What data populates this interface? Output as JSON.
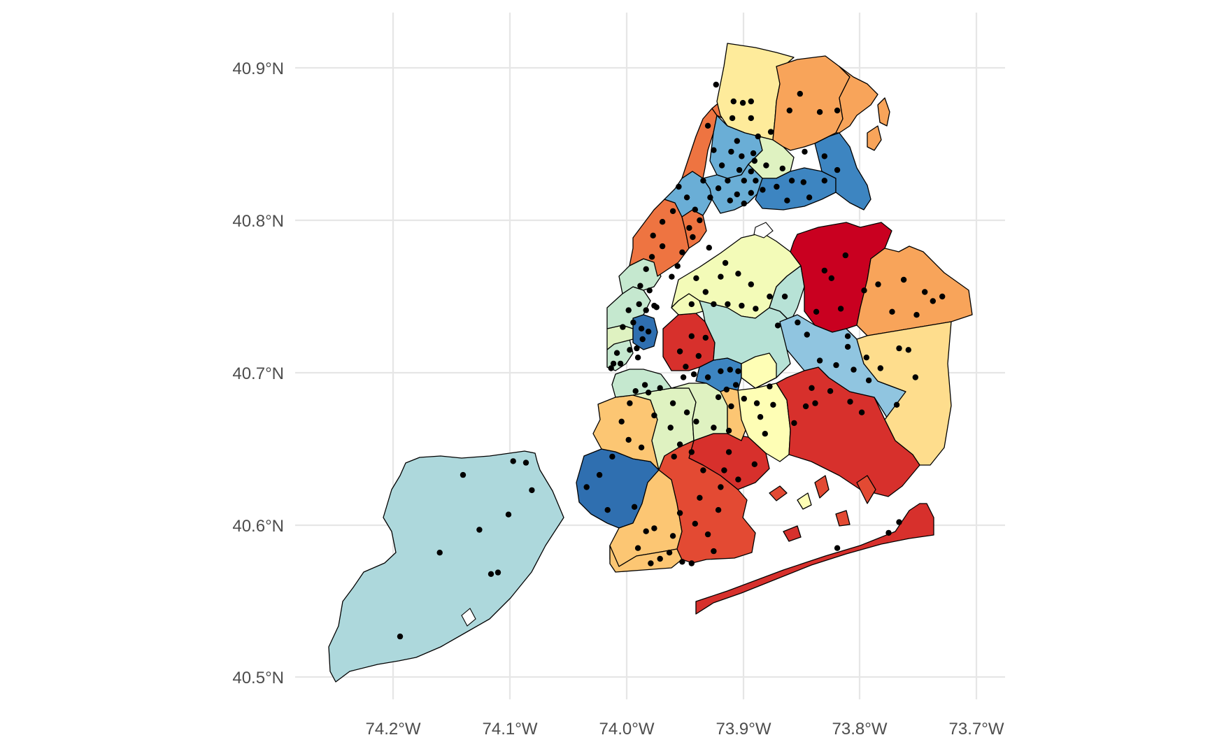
{
  "map": {
    "axes": {
      "x_ticks": [
        "74.2°W",
        "74.1°W",
        "74.0°W",
        "73.9°W",
        "73.8°W",
        "73.7°W"
      ],
      "y_ticks": [
        "40.9°N",
        "40.8°N",
        "40.7°N",
        "40.6°N",
        "40.5°N"
      ]
    },
    "palette": {
      "deep_red": "#c90020",
      "red": "#d7302c",
      "red_orange": "#e34a33",
      "orange_red": "#ee7441",
      "orange": "#f8a45a",
      "light_orange": "#fcc673",
      "pale_orange": "#fedd8d",
      "pale_yellow": "#feeb9b",
      "cream_yellow": "#fefeb5",
      "pale_lime": "#f3fbb8",
      "light_green": "#dff2c1",
      "mint": "#c5e8cf",
      "pale_teal": "#b7e2d6",
      "light_teal": "#add8dc",
      "light_blue": "#90c5e0",
      "medium_blue": "#6aaed6",
      "blue": "#3d85c1",
      "dark_blue": "#2f6fb0"
    },
    "points_lonlat": [
      [
        -73.923,
        40.889
      ],
      [
        -73.908,
        40.878
      ],
      [
        -73.9,
        40.877
      ],
      [
        -73.893,
        40.878
      ],
      [
        -73.909,
        40.867
      ],
      [
        -73.893,
        40.867
      ],
      [
        -73.887,
        40.855
      ],
      [
        -73.876,
        40.858
      ],
      [
        -73.93,
        40.862
      ],
      [
        -73.905,
        40.852
      ],
      [
        -73.891,
        40.844
      ],
      [
        -73.88,
        40.836
      ],
      [
        -73.866,
        40.834
      ],
      [
        -73.851,
        40.883
      ],
      [
        -73.834,
        40.871
      ],
      [
        -73.819,
        40.872
      ],
      [
        -73.86,
        40.872
      ],
      [
        -73.83,
        40.842
      ],
      [
        -73.819,
        40.833
      ],
      [
        -73.847,
        40.845
      ],
      [
        -73.925,
        40.846
      ],
      [
        -73.91,
        40.845
      ],
      [
        -73.901,
        40.842
      ],
      [
        -73.89,
        40.839
      ],
      [
        -73.918,
        40.836
      ],
      [
        -73.903,
        40.833
      ],
      [
        -73.893,
        40.832
      ],
      [
        -73.913,
        40.826
      ],
      [
        -73.899,
        40.826
      ],
      [
        -73.889,
        40.826
      ],
      [
        -73.921,
        40.821
      ],
      [
        -73.905,
        40.817
      ],
      [
        -73.893,
        40.818
      ],
      [
        -73.883,
        40.82
      ],
      [
        -73.871,
        40.822
      ],
      [
        -73.858,
        40.826
      ],
      [
        -73.848,
        40.825
      ],
      [
        -73.862,
        40.813
      ],
      [
        -73.843,
        40.815
      ],
      [
        -73.83,
        40.826
      ],
      [
        -73.934,
        40.826
      ],
      [
        -73.928,
        40.815
      ],
      [
        -73.911,
        40.813
      ],
      [
        -73.899,
        40.811
      ],
      [
        -73.955,
        40.822
      ],
      [
        -73.948,
        40.815
      ],
      [
        -73.941,
        40.807
      ],
      [
        -73.946,
        40.795
      ],
      [
        -73.937,
        40.8
      ],
      [
        -73.96,
        40.806
      ],
      [
        -73.969,
        40.799
      ],
      [
        -73.977,
        40.79
      ],
      [
        -73.969,
        40.783
      ],
      [
        -73.978,
        40.776
      ],
      [
        -73.952,
        40.779
      ],
      [
        -73.943,
        40.789
      ],
      [
        -73.983,
        40.768
      ],
      [
        -73.988,
        40.757
      ],
      [
        -73.98,
        40.754
      ],
      [
        -73.989,
        40.745
      ],
      [
        -73.974,
        40.743
      ],
      [
        -73.961,
        40.763
      ],
      [
        -73.956,
        40.77
      ],
      [
        -73.998,
        40.741
      ],
      [
        -73.994,
        40.733
      ],
      [
        -73.987,
        40.729
      ],
      [
        -73.981,
        40.727
      ],
      [
        -74.003,
        40.73
      ],
      [
        -73.991,
        40.716
      ],
      [
        -73.986,
        40.722
      ],
      [
        -74.008,
        40.713
      ],
      [
        -73.997,
        40.715
      ],
      [
        -74.011,
        40.706
      ],
      [
        -74.005,
        40.706
      ],
      [
        -74.013,
        40.703
      ],
      [
        -73.99,
        40.71
      ],
      [
        -73.983,
        40.741
      ],
      [
        -73.976,
        40.744
      ],
      [
        -73.929,
        40.782
      ],
      [
        -73.915,
        40.772
      ],
      [
        -73.904,
        40.765
      ],
      [
        -73.893,
        40.758
      ],
      [
        -73.919,
        40.763
      ],
      [
        -73.94,
        40.762
      ],
      [
        -73.932,
        40.753
      ],
      [
        -73.944,
        40.745
      ],
      [
        -73.925,
        40.745
      ],
      [
        -73.913,
        40.745
      ],
      [
        -73.901,
        40.744
      ],
      [
        -73.889,
        40.742
      ],
      [
        -73.877,
        40.75
      ],
      [
        -73.864,
        40.75
      ],
      [
        -73.87,
        40.731
      ],
      [
        -73.853,
        40.733
      ],
      [
        -73.837,
        40.74
      ],
      [
        -73.845,
        40.725
      ],
      [
        -73.834,
        40.708
      ],
      [
        -73.82,
        40.705
      ],
      [
        -73.805,
        40.702
      ],
      [
        -73.81,
        40.717
      ],
      [
        -73.794,
        40.71
      ],
      [
        -73.792,
        40.695
      ],
      [
        -73.782,
        40.703
      ],
      [
        -73.784,
        40.758
      ],
      [
        -73.796,
        40.754
      ],
      [
        -73.812,
        40.777
      ],
      [
        -73.824,
        40.762
      ],
      [
        -73.83,
        40.767
      ],
      [
        -73.816,
        40.742
      ],
      [
        -73.81,
        40.724
      ],
      [
        -73.772,
        40.74
      ],
      [
        -73.762,
        40.761
      ],
      [
        -73.751,
        40.738
      ],
      [
        -73.744,
        40.753
      ],
      [
        -73.737,
        40.747
      ],
      [
        -73.729,
        40.75
      ],
      [
        -73.758,
        40.715
      ],
      [
        -73.766,
        40.716
      ],
      [
        -73.752,
        40.697
      ],
      [
        -73.768,
        40.679
      ],
      [
        -73.798,
        40.674
      ],
      [
        -73.808,
        40.681
      ],
      [
        -73.825,
        40.688
      ],
      [
        -73.838,
        40.68
      ],
      [
        -73.846,
        40.678
      ],
      [
        -73.841,
        40.69
      ],
      [
        -73.856,
        40.667
      ],
      [
        -73.881,
        40.66
      ],
      [
        -73.885,
        40.671
      ],
      [
        -73.888,
        40.68
      ],
      [
        -73.874,
        40.679
      ],
      [
        -73.877,
        40.691
      ],
      [
        -73.899,
        40.683
      ],
      [
        -73.944,
        40.724
      ],
      [
        -73.954,
        40.714
      ],
      [
        -73.938,
        40.711
      ],
      [
        -73.932,
        40.723
      ],
      [
        -73.949,
        40.704
      ],
      [
        -73.951,
        40.697
      ],
      [
        -73.942,
        40.699
      ],
      [
        -73.93,
        40.697
      ],
      [
        -73.919,
        40.701
      ],
      [
        -73.911,
        40.702
      ],
      [
        -73.904,
        40.701
      ],
      [
        -73.906,
        40.692
      ],
      [
        -73.914,
        40.689
      ],
      [
        -73.921,
        40.684
      ],
      [
        -73.91,
        40.678
      ],
      [
        -73.96,
        40.68
      ],
      [
        -73.971,
        40.69
      ],
      [
        -73.981,
        40.687
      ],
      [
        -73.984,
        40.692
      ],
      [
        -73.976,
        40.672
      ],
      [
        -73.962,
        40.664
      ],
      [
        -73.948,
        40.674
      ],
      [
        -73.94,
        40.668
      ],
      [
        -73.925,
        40.664
      ],
      [
        -73.912,
        40.662
      ],
      [
        -73.954,
        40.653
      ],
      [
        -73.959,
        40.645
      ],
      [
        -73.944,
        40.648
      ],
      [
        -73.934,
        40.636
      ],
      [
        -73.912,
        40.648
      ],
      [
        -73.916,
        40.636
      ],
      [
        -73.992,
        40.688
      ],
      [
        -73.997,
        40.68
      ],
      [
        -74.004,
        40.668
      ],
      [
        -73.998,
        40.656
      ],
      [
        -73.987,
        40.651
      ],
      [
        -74.012,
        40.645
      ],
      [
        -74.023,
        40.633
      ],
      [
        -74.016,
        40.61
      ],
      [
        -74.034,
        40.625
      ],
      [
        -73.993,
        40.612
      ],
      [
        -73.983,
        40.596
      ],
      [
        -73.976,
        40.598
      ],
      [
        -73.99,
        40.585
      ],
      [
        -73.979,
        40.575
      ],
      [
        -73.96,
        40.593
      ],
      [
        -73.954,
        40.608
      ],
      [
        -73.941,
        40.601
      ],
      [
        -73.937,
        40.618
      ],
      [
        -73.963,
        40.582
      ],
      [
        -73.971,
        40.578
      ],
      [
        -73.952,
        40.576
      ],
      [
        -73.944,
        40.575
      ],
      [
        -73.93,
        40.594
      ],
      [
        -73.925,
        40.583
      ],
      [
        -73.904,
        40.63
      ],
      [
        -73.89,
        40.64
      ],
      [
        -73.921,
        40.61
      ],
      [
        -73.919,
        40.625
      ],
      [
        -73.819,
        40.585
      ],
      [
        -73.766,
        40.602
      ],
      [
        -73.775,
        40.595
      ],
      [
        -74.097,
        40.642
      ],
      [
        -74.086,
        40.641
      ],
      [
        -74.081,
        40.623
      ],
      [
        -74.14,
        40.633
      ],
      [
        -74.101,
        40.607
      ],
      [
        -74.126,
        40.597
      ],
      [
        -74.16,
        40.582
      ],
      [
        -74.116,
        40.568
      ],
      [
        -74.11,
        40.569
      ],
      [
        -74.194,
        40.527
      ]
    ]
  }
}
